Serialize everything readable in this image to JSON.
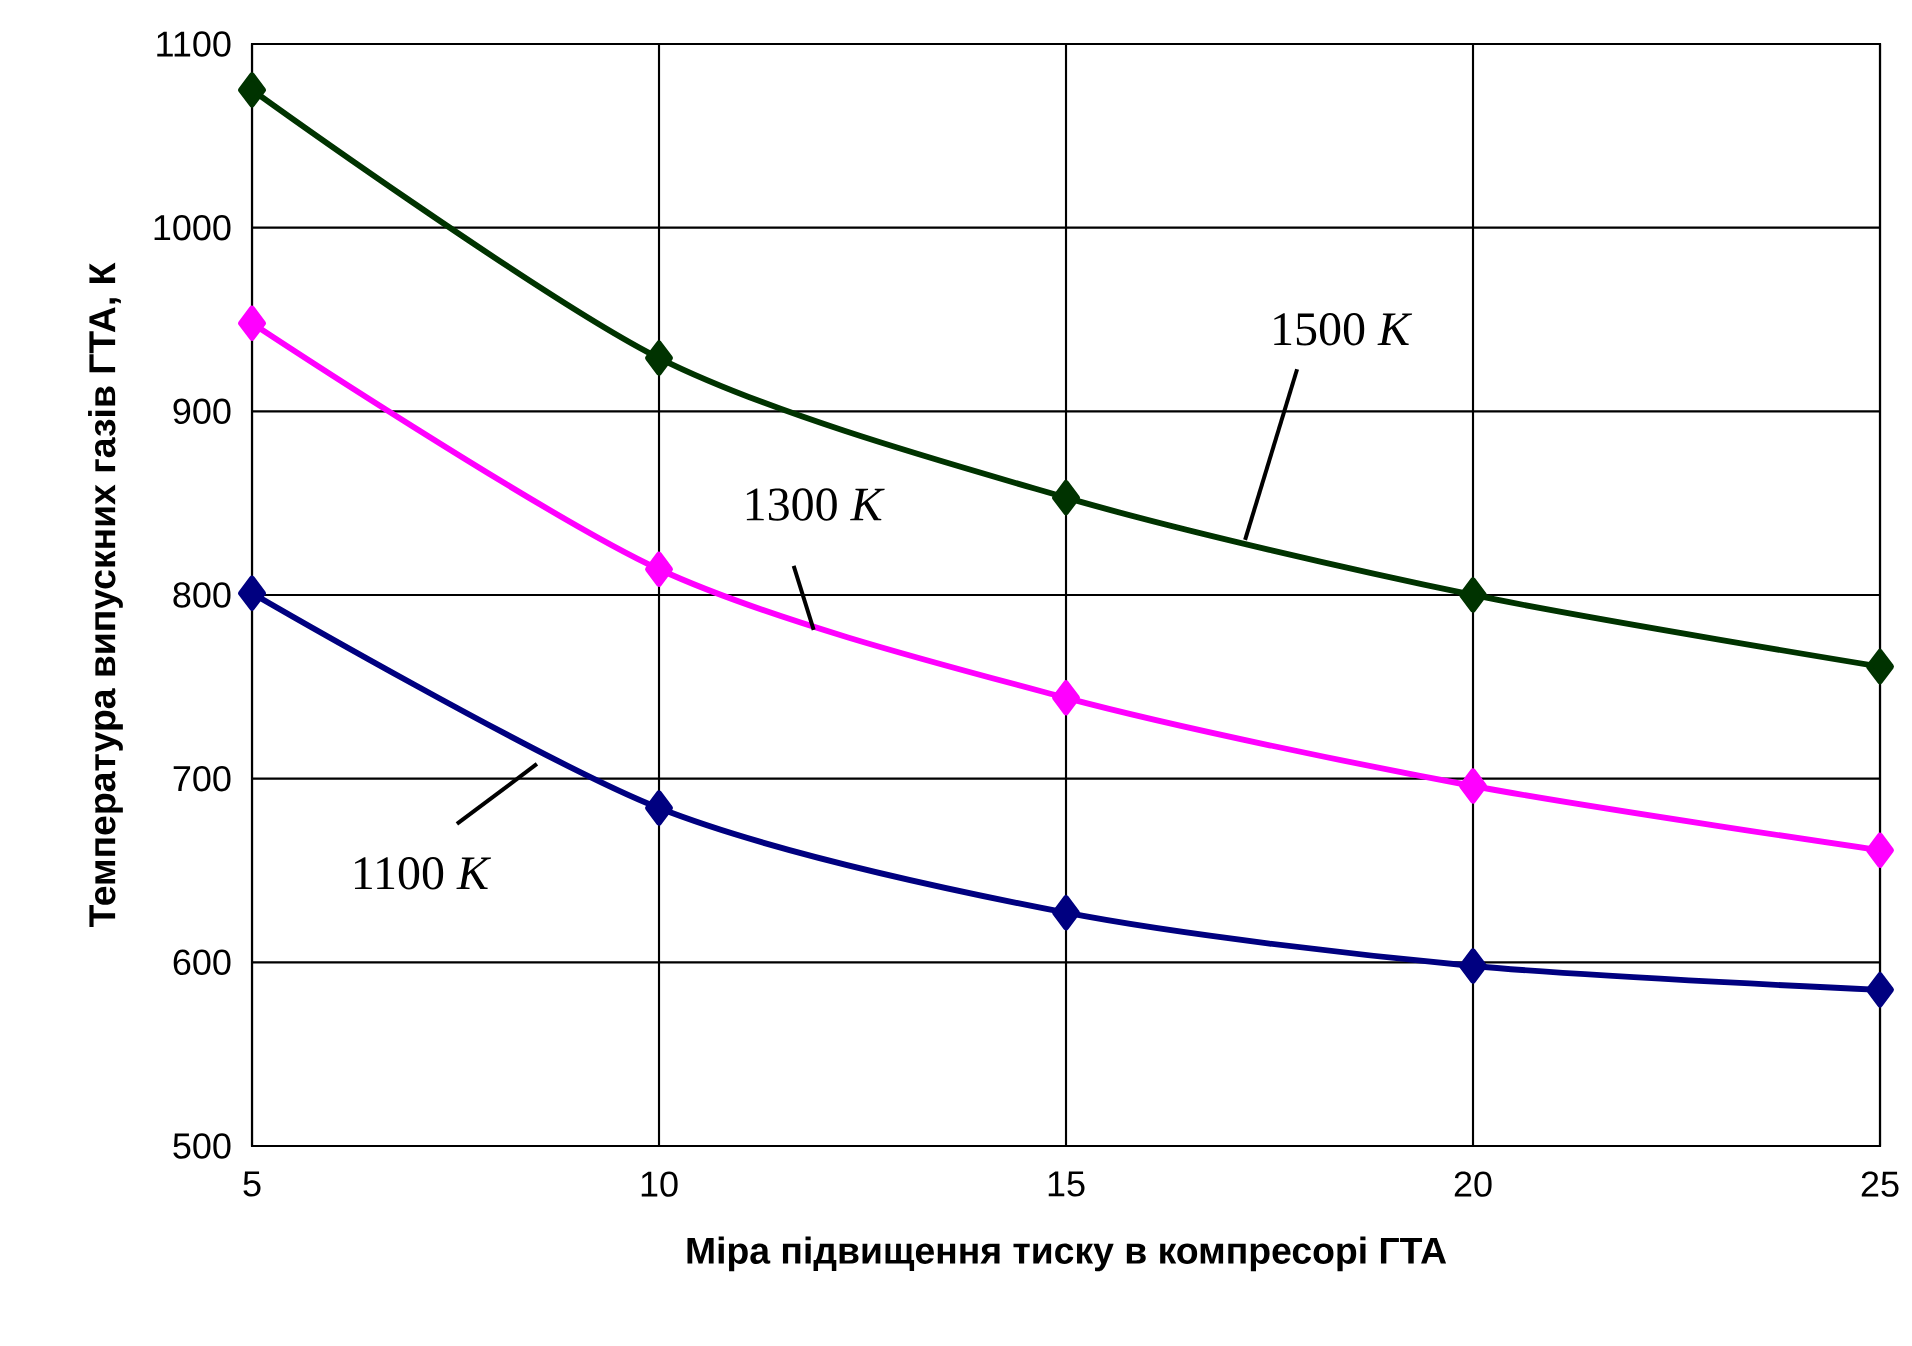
{
  "chart_data": {
    "type": "line",
    "xlabel": "Міра підвищення тиску в компресорі ГТА",
    "ylabel": "Температура випускних газів ГТА, К",
    "x": [
      5,
      10,
      15,
      20,
      25
    ],
    "series": [
      {
        "color": "#003300",
        "values": [
          1075,
          929,
          853,
          800,
          761
        ]
      },
      {
        "color": "#ff00ff",
        "values": [
          948,
          814,
          744,
          696,
          661
        ]
      },
      {
        "color": "#000080",
        "values": [
          801,
          684,
          627,
          598,
          585
        ]
      }
    ],
    "annotations": [
      {
        "text": "1500 *K*",
        "x": 17.2,
        "y": 830
      },
      {
        "text": "1300 *K*",
        "x": 11.9,
        "y": 781
      },
      {
        "text": "1100 *K*",
        "x": 8.5,
        "y": 708
      }
    ],
    "xlim": [
      5,
      25
    ],
    "ylim": [
      500,
      1100
    ],
    "xticks": [
      5,
      10,
      15,
      20,
      25
    ],
    "yticks": [
      500,
      600,
      700,
      800,
      900,
      1000,
      1100
    ],
    "grid": true,
    "marker": "diamond",
    "line_style": "solid"
  }
}
